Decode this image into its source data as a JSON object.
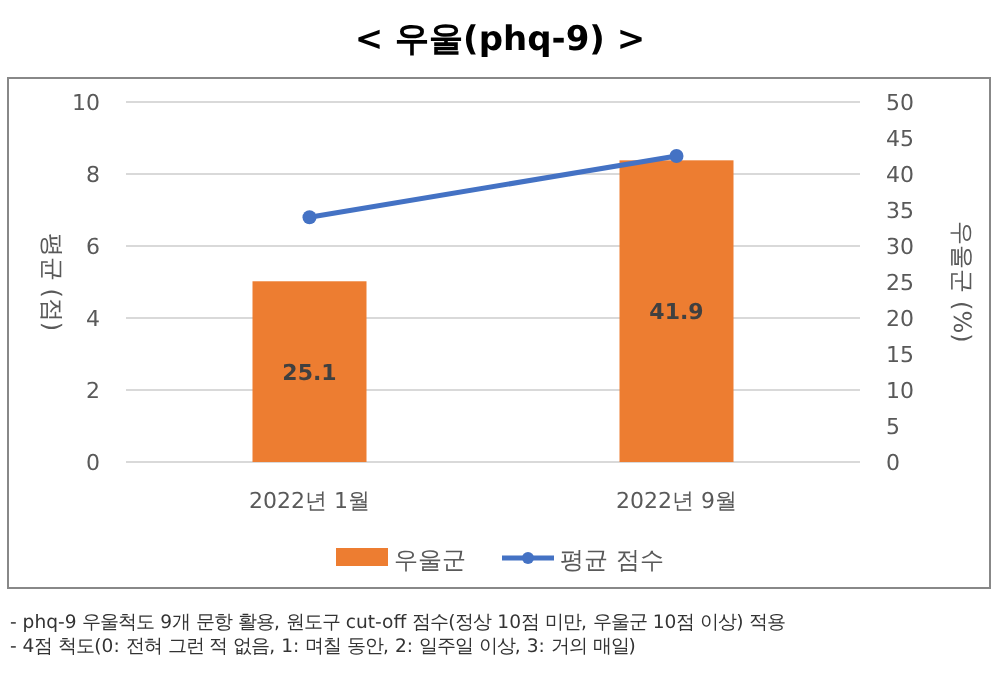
{
  "chart_data": {
    "type": "bar",
    "title": "< 우울(phq-9) >",
    "ylabel": "평균 (점)",
    "y2label": "우울군 (%)",
    "categories": [
      "2022년 1월",
      "2022년 9월"
    ],
    "series": [
      {
        "name": "우울군",
        "axis": "y2",
        "color": "#ed7d31",
        "values": [
          25.1,
          41.9
        ],
        "value_labels": [
          "25.1",
          "41.9"
        ]
      },
      {
        "name": "평균 점수",
        "type": "line",
        "axis": "y",
        "color": "#4472c4",
        "marker": "circle",
        "values": [
          6.8,
          8.5
        ]
      }
    ],
    "ylim": [
      0,
      10
    ],
    "yticks": [
      0,
      2,
      4,
      6,
      8,
      10
    ],
    "y2lim": [
      0,
      50
    ],
    "y2ticks": [
      0,
      5,
      10,
      15,
      20,
      25,
      30,
      35,
      40,
      45,
      50
    ],
    "grid": "y",
    "legend": "bottom",
    "annotations": [
      "- phq-9 우울척도 9개 문항 활용, 원도구 cut-off 점수(정상 10점 미만, 우울군 10점 이상) 적용",
      "- 4점 척도(0: 전혀 그런 적 없음, 1: 며칠 동안, 2: 일주일 이상, 3: 거의 매일)"
    ]
  }
}
